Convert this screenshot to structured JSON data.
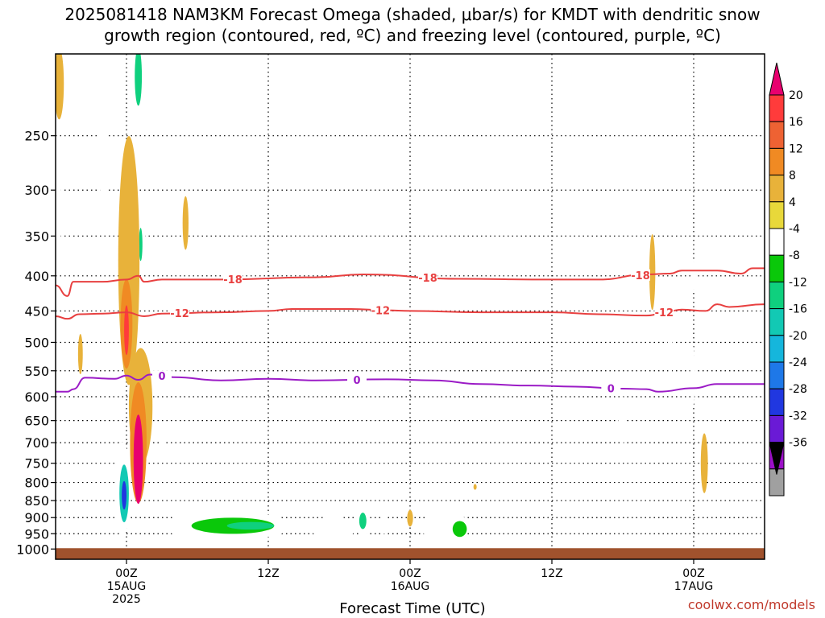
{
  "title_line1": "2025081418 NAM3KM Forecast Omega (shaded, μbar/s) for KMDT with dendritic snow",
  "title_line2": "growth region (contoured, red, ºC) and freezing level (contoured, purple, ºC)",
  "credit": "coolwx.com/models",
  "chart_data": {
    "type": "heatmap",
    "xlabel": "Forecast Time (UTC)",
    "x_ticks": [
      {
        "hour": 0,
        "lines": [
          "00Z",
          "15AUG",
          "2025"
        ]
      },
      {
        "hour": 12,
        "lines": [
          "12Z"
        ]
      },
      {
        "hour": 24,
        "lines": [
          "00Z",
          "16AUG"
        ]
      },
      {
        "hour": 36,
        "lines": [
          "12Z"
        ]
      },
      {
        "hour": 48,
        "lines": [
          "00Z",
          "17AUG"
        ]
      }
    ],
    "x_range_hours": [
      -6,
      54
    ],
    "y_pressure_range_mb": [
      190,
      1035
    ],
    "y_ticks_mb": [
      250,
      300,
      350,
      400,
      450,
      500,
      550,
      600,
      650,
      700,
      750,
      800,
      850,
      900,
      950,
      1000
    ],
    "grid": true,
    "colorbar": {
      "units": "μbar/s",
      "levels": [
        20,
        16,
        12,
        8,
        4,
        -4,
        -8,
        -12,
        -16,
        -20,
        -24,
        -28,
        -32,
        -36
      ],
      "colors": [
        "#ff3b3b",
        "#ee6233",
        "#f08a23",
        "#e8b23a",
        "#e8d83a",
        "#ffffff",
        "#0ac80a",
        "#0fd07e",
        "#12c9b4",
        "#15b6dc",
        "#1e78e8",
        "#2037e0",
        "#6a1ad6",
        "#9c10c8",
        "#a0a0a0"
      ],
      "top_cap_color": "#e8006f",
      "bottom_cap_color": "#000000"
    },
    "contours": [
      {
        "label": "-18",
        "color": "#e84040",
        "points": [
          [
            -6,
            413
          ],
          [
            -5,
            428
          ],
          [
            -4.5,
            408
          ],
          [
            -2,
            408
          ],
          [
            0,
            405
          ],
          [
            1,
            400
          ],
          [
            1.5,
            408
          ],
          [
            3,
            405
          ],
          [
            8,
            405
          ],
          [
            16,
            402
          ],
          [
            20,
            398
          ],
          [
            28,
            404
          ],
          [
            36,
            405
          ],
          [
            40,
            405
          ],
          [
            44,
            398
          ],
          [
            46,
            397
          ],
          [
            47,
            393
          ],
          [
            50,
            393
          ],
          [
            52,
            397
          ],
          [
            53,
            390
          ],
          [
            54,
            390
          ]
        ],
        "labels_at_hours": [
          9,
          25.5,
          43.5
        ]
      },
      {
        "label": "-12",
        "color": "#e84040",
        "points": [
          [
            -6,
            458
          ],
          [
            -5,
            462
          ],
          [
            -4,
            455
          ],
          [
            -2,
            454
          ],
          [
            0,
            452
          ],
          [
            1.5,
            458
          ],
          [
            3,
            454
          ],
          [
            8,
            452
          ],
          [
            12,
            450
          ],
          [
            14,
            447
          ],
          [
            19,
            447
          ],
          [
            22,
            449
          ],
          [
            24,
            450
          ],
          [
            30,
            452
          ],
          [
            36,
            452
          ],
          [
            40,
            455
          ],
          [
            44,
            457
          ],
          [
            46,
            450
          ],
          [
            47,
            448
          ],
          [
            49,
            450
          ],
          [
            50,
            440
          ],
          [
            51,
            444
          ],
          [
            54,
            440
          ]
        ],
        "labels_at_hours": [
          4.5,
          21.5,
          45.5
        ]
      },
      {
        "label": "0",
        "color": "#9b1bc6",
        "points": [
          [
            -6,
            590
          ],
          [
            -5,
            590
          ],
          [
            -4.5,
            585
          ],
          [
            -3.5,
            563
          ],
          [
            -1,
            565
          ],
          [
            0,
            559
          ],
          [
            1,
            567
          ],
          [
            2,
            557
          ],
          [
            4,
            562
          ],
          [
            8,
            568
          ],
          [
            12,
            565
          ],
          [
            16,
            568
          ],
          [
            22,
            566
          ],
          [
            26,
            568
          ],
          [
            30,
            575
          ],
          [
            34,
            578
          ],
          [
            38,
            580
          ],
          [
            42,
            584
          ],
          [
            44,
            585
          ],
          [
            45,
            590
          ],
          [
            48,
            583
          ],
          [
            50,
            575
          ],
          [
            54,
            575
          ]
        ],
        "labels_at_hours": [
          3,
          19.5,
          41
        ]
      }
    ],
    "omega_blobs": [
      {
        "hour": -5.7,
        "mb": 210,
        "rh": 0.4,
        "rmb": 25,
        "value": 6
      },
      {
        "hour": -2.0,
        "mb": 265,
        "rh": 0.35,
        "rmb": 45,
        "value": -6
      },
      {
        "hour": -5.9,
        "mb": 320,
        "rh": 0.4,
        "rmb": 55,
        "value": -6
      },
      {
        "hour": 1.0,
        "mb": 215,
        "rh": 0.6,
        "rmb": 30,
        "value": -8
      },
      {
        "hour": 1.0,
        "mb": 205,
        "rh": 0.3,
        "rmb": 20,
        "value": -14
      },
      {
        "hour": 1.2,
        "mb": 360,
        "rh": 0.4,
        "rmb": 35,
        "value": -6
      },
      {
        "hour": 1.2,
        "mb": 360,
        "rh": 0.15,
        "rmb": 20,
        "value": -14
      },
      {
        "hour": 5.0,
        "mb": 335,
        "rh": 0.25,
        "rmb": 30,
        "value": 6
      },
      {
        "hour": 0.2,
        "mb": 380,
        "rh": 0.9,
        "rmb": 150,
        "value": 5
      },
      {
        "hour": 0.0,
        "mb": 470,
        "rh": 0.5,
        "rmb": 70,
        "value": 10
      },
      {
        "hour": 0.0,
        "mb": 480,
        "rh": 0.2,
        "rmb": 40,
        "value": 18
      },
      {
        "hour": -3.9,
        "mb": 520,
        "rh": 0.2,
        "rmb": 35,
        "value": 5
      },
      {
        "hour": 1.2,
        "mb": 620,
        "rh": 1.0,
        "rmb": 120,
        "value": 5
      },
      {
        "hour": 1.0,
        "mb": 700,
        "rh": 0.7,
        "rmb": 140,
        "value": 10
      },
      {
        "hour": 1.0,
        "mb": 740,
        "rh": 0.4,
        "rmb": 110,
        "value": 21
      },
      {
        "hour": 3.0,
        "mb": 695,
        "rh": 0.15,
        "rmb": 15,
        "value": -6
      },
      {
        "hour": -0.3,
        "mb": 820,
        "rh": 0.6,
        "rmb": 130,
        "value": -8
      },
      {
        "hour": -0.2,
        "mb": 830,
        "rh": 0.4,
        "rmb": 80,
        "value": -18
      },
      {
        "hour": -0.2,
        "mb": 835,
        "rh": 0.2,
        "rmb": 40,
        "value": -30
      },
      {
        "hour": 8.5,
        "mb": 925,
        "rh": 5.5,
        "rmb": 45,
        "value": -6
      },
      {
        "hour": 9.0,
        "mb": 925,
        "rh": 3.5,
        "rmb": 25,
        "value": -10
      },
      {
        "hour": 10.5,
        "mb": 925,
        "rh": 2.0,
        "rmb": 12,
        "value": -14
      },
      {
        "hour": 17.5,
        "mb": 935,
        "rh": 1.8,
        "rmb": 40,
        "value": -6
      },
      {
        "hour": 20.0,
        "mb": 910,
        "rh": 0.6,
        "rmb": 50,
        "value": -6
      },
      {
        "hour": 20.0,
        "mb": 910,
        "rh": 0.3,
        "rmb": 25,
        "value": -14
      },
      {
        "hour": 21.8,
        "mb": 915,
        "rh": 0.3,
        "rmb": 35,
        "value": -6
      },
      {
        "hour": 24.0,
        "mb": 902,
        "rh": 0.25,
        "rmb": 25,
        "value": 6
      },
      {
        "hour": 27.0,
        "mb": 930,
        "rh": 2.0,
        "rmb": 50,
        "value": -6
      },
      {
        "hour": 28.2,
        "mb": 935,
        "rh": 0.6,
        "rmb": 25,
        "value": -12
      },
      {
        "hour": 29.5,
        "mb": 812,
        "rh": 0.1,
        "rmb": 8,
        "value": 6
      },
      {
        "hour": 44.5,
        "mb": 395,
        "rh": 0.25,
        "rmb": 50,
        "value": 6
      },
      {
        "hour": 46.0,
        "mb": 490,
        "rh": 0.2,
        "rmb": 90,
        "value": -6
      },
      {
        "hour": 41.9,
        "mb": 650,
        "rh": 0.25,
        "rmb": 60,
        "value": -6
      },
      {
        "hour": 48.9,
        "mb": 750,
        "rh": 0.3,
        "rmb": 75,
        "value": 6
      },
      {
        "hour": 48.0,
        "mb": 400,
        "rh": 0.15,
        "rmb": 20,
        "value": -6
      },
      {
        "hour": 47.9,
        "mb": 560,
        "rh": 0.2,
        "rmb": 60,
        "value": -6
      }
    ],
    "ground_color": "#a0522d"
  }
}
